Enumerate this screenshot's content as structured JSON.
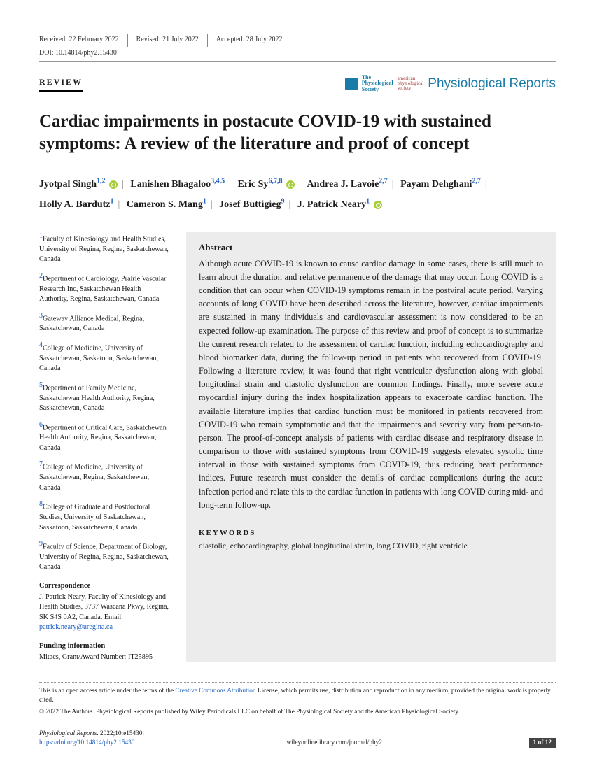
{
  "meta": {
    "received": "Received: 22 February 2022",
    "revised": "Revised: 21 July 2022",
    "accepted": "Accepted: 28 July 2022",
    "doi": "DOI: 10.14814/phy2.15430"
  },
  "section_label": "REVIEW",
  "logo": {
    "phys_soc": "The\nPhysiological\nSociety",
    "aps": "american\nphysiological\nsociety",
    "journal": "Physiological Reports"
  },
  "title": "Cardiac impairments in postacute COVID-19 with sustained symptoms: A review of the literature and proof of concept",
  "authors": [
    {
      "name": "Jyotpal Singh",
      "aff": "1,2",
      "orcid": true
    },
    {
      "name": "Lanishen Bhagaloo",
      "aff": "3,4,5",
      "orcid": false
    },
    {
      "name": "Eric Sy",
      "aff": "6,7,8",
      "orcid": true
    },
    {
      "name": "Andrea J. Lavoie",
      "aff": "2,7",
      "orcid": false
    },
    {
      "name": "Payam Dehghani",
      "aff": "2,7",
      "orcid": false
    },
    {
      "name": "Holly A. Bardutz",
      "aff": "1",
      "orcid": false
    },
    {
      "name": "Cameron S. Mang",
      "aff": "1",
      "orcid": false
    },
    {
      "name": "Josef Buttigieg",
      "aff": "9",
      "orcid": false
    },
    {
      "name": "J. Patrick Neary",
      "aff": "1",
      "orcid": true
    }
  ],
  "affiliations": [
    {
      "n": "1",
      "text": "Faculty of Kinesiology and Health Studies, University of Regina, Regina, Saskatchewan, Canada"
    },
    {
      "n": "2",
      "text": "Department of Cardiology, Prairie Vascular Research Inc, Saskatchewan Health Authority, Regina, Saskatchewan, Canada"
    },
    {
      "n": "3",
      "text": "Gateway Alliance Medical, Regina, Saskatchewan, Canada"
    },
    {
      "n": "4",
      "text": "College of Medicine, University of Saskatchewan, Saskatoon, Saskatchewan, Canada"
    },
    {
      "n": "5",
      "text": "Department of Family Medicine, Saskatchewan Health Authority, Regina, Saskatchewan, Canada"
    },
    {
      "n": "6",
      "text": "Department of Critical Care, Saskatchewan Health Authority, Regina, Saskatchewan, Canada"
    },
    {
      "n": "7",
      "text": "College of Medicine, University of Saskatchewan, Regina, Saskatchewan, Canada"
    },
    {
      "n": "8",
      "text": "College of Graduate and Postdoctoral Studies, University of Saskatchewan, Saskatoon, Saskatchewan, Canada"
    },
    {
      "n": "9",
      "text": "Faculty of Science, Department of Biology, University of Regina, Regina, Saskatchewan, Canada"
    }
  ],
  "correspondence": {
    "head": "Correspondence",
    "body": "J. Patrick Neary, Faculty of Kinesiology and Health Studies, 3737 Wascana Pkwy, Regina, SK S4S 0A2, Canada. Email: ",
    "email": "patrick.neary@uregina.ca"
  },
  "funding": {
    "head": "Funding information",
    "body": "Mitacs, Grant/Award Number: IT25895"
  },
  "abstract": {
    "head": "Abstract",
    "body": "Although acute COVID-19 is known to cause cardiac damage in some cases, there is still much to learn about the duration and relative permanence of the damage that may occur. Long COVID is a condition that can occur when COVID-19 symptoms remain in the postviral acute period. Varying accounts of long COVID have been described across the literature, however, cardiac impairments are sustained in many individuals and cardiovascular assessment is now considered to be an expected follow-up examination. The purpose of this review and proof of concept is to summarize the current research related to the assessment of cardiac function, including echocardiography and blood biomarker data, during the follow-up period in patients who recovered from COVID-19. Following a literature review, it was found that right ventricular dysfunction along with global longitudinal strain and diastolic dysfunction are common findings. Finally, more severe acute myocardial injury during the index hospitalization appears to exacerbate cardiac function. The available literature implies that cardiac function must be monitored in patients recovered from COVID-19 who remain symptomatic and that the impairments and severity vary from person-to-person. The proof-of-concept analysis of patients with cardiac disease and respiratory disease in comparison to those with sustained symptoms from COVID-19 suggests elevated systolic time interval in those with sustained symptoms from COVID-19, thus reducing heart performance indices. Future research must consider the details of cardiac complications during the acute infection period and relate this to the cardiac function in patients with long COVID during mid- and long-term follow-up."
  },
  "keywords": {
    "head": "KEYWORDS",
    "body": "diastolic, echocardiography, global longitudinal strain, long COVID, right ventricle"
  },
  "license": {
    "text_before": "This is an open access article under the terms of the ",
    "link": "Creative Commons Attribution",
    "text_after": " License, which permits use, distribution and reproduction in any medium, provided the original work is properly cited."
  },
  "copyright": "© 2022 The Authors. Physiological Reports published by Wiley Periodicals LLC on behalf of The Physiological Society and the American Physiological Society.",
  "footer": {
    "citation_journal": "Physiological Reports",
    "citation_rest": ". 2022;10:e15430.",
    "doi_url": "https://doi.org/10.14814/phy2.15430",
    "site": "wileyonlinelibrary.com/journal/phy2",
    "page": "1 of 12"
  }
}
